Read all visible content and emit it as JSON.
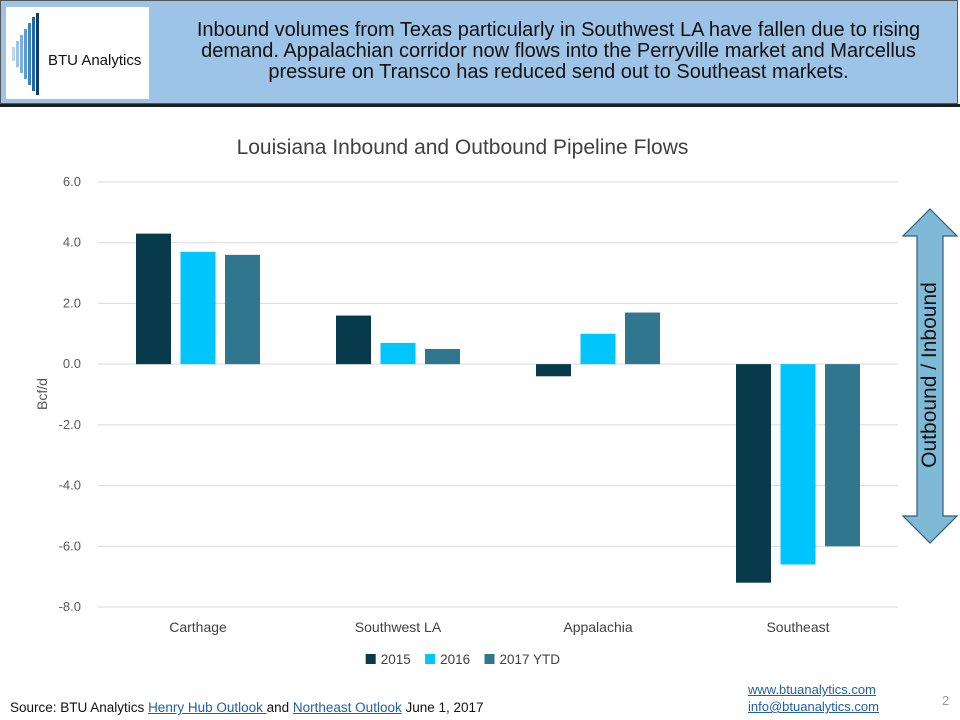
{
  "header": {
    "logo_text": "BTU Analytics",
    "headline": "Inbound volumes from Texas particularly in Southwest LA have fallen due to rising demand. Appalachian corridor now flows into the Perryville market and Marcellus pressure on Transco has reduced send out to Southeast markets."
  },
  "chart_data": {
    "type": "bar",
    "title": "Louisiana Inbound and Outbound Pipeline Flows",
    "xlabel": "",
    "ylabel": "Bcf/d",
    "ylim": [
      -8,
      6
    ],
    "yticks": [
      "6.0",
      "4.0",
      "2.0",
      "0.0",
      "-2.0",
      "-4.0",
      "-6.0",
      "-8.0"
    ],
    "categories": [
      "Carthage",
      "Southwest LA",
      "Appalachia",
      "Southeast"
    ],
    "series": [
      {
        "name": "2015",
        "color": "#073b4c",
        "values": [
          4.3,
          1.6,
          -0.4,
          -7.2
        ]
      },
      {
        "name": "2016",
        "color": "#00c5ff",
        "values": [
          3.7,
          0.7,
          1.0,
          -6.6
        ]
      },
      {
        "name": "2017 YTD",
        "color": "#31768f",
        "values": [
          3.6,
          0.5,
          1.7,
          -6.0
        ]
      }
    ],
    "grid": true,
    "legend": "bottom"
  },
  "arrow": {
    "label": "Outbound / Inbound",
    "color": "#7eb9d6"
  },
  "footer": {
    "source_prefix": "Source: BTU Analytics ",
    "link1": "Henry Hub Outlook ",
    "mid": "and ",
    "link2": "Northeast Outlook",
    "suffix": " June 1, 2017",
    "website": "www.btuanalytics.com",
    "email": "info@btuanalytics.com",
    "page_number": "2"
  }
}
